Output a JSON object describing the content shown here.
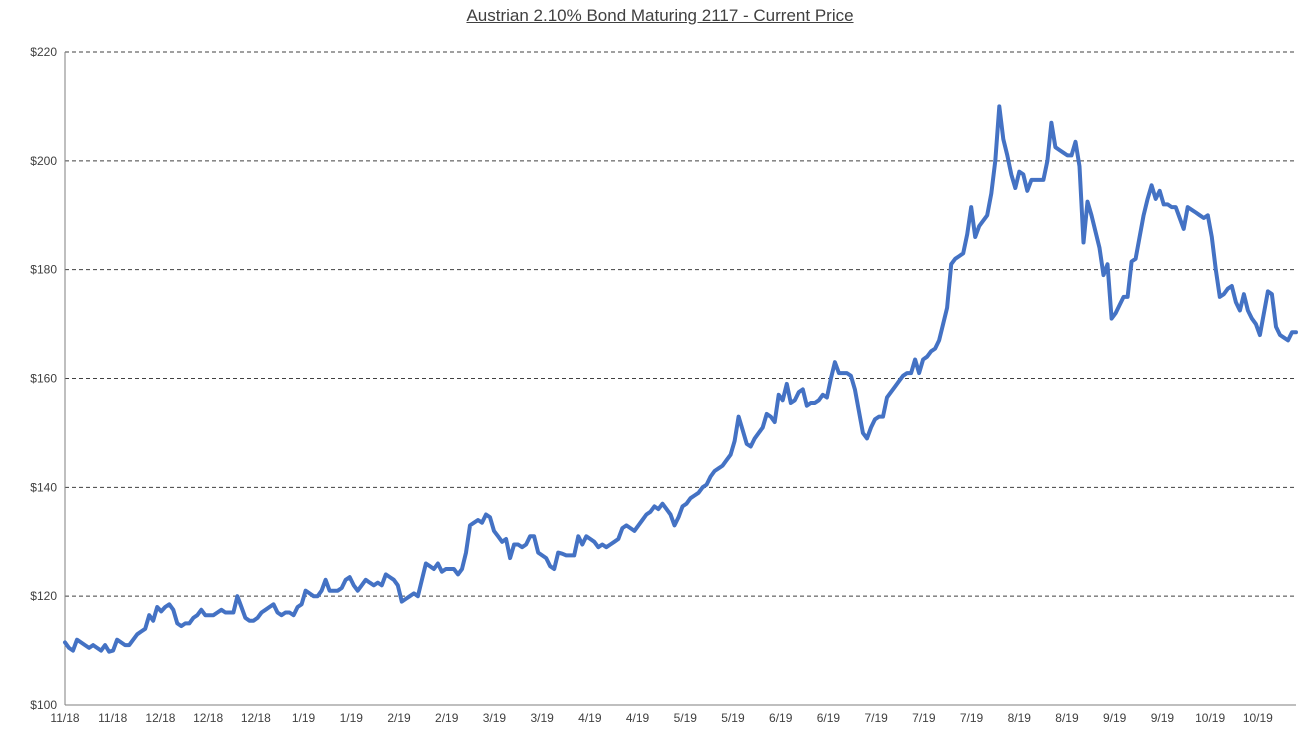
{
  "chart_data": {
    "type": "line",
    "title": "Austrian 2.10% Bond Maturing 2117 - Current Price",
    "xlabel": "",
    "ylabel": "",
    "ylim": [
      100,
      220
    ],
    "y_ticks": [
      100,
      120,
      140,
      160,
      180,
      200,
      220
    ],
    "y_tick_labels": [
      "$100",
      "$120",
      "$140",
      "$160",
      "$180",
      "$200",
      "$220"
    ],
    "x_tick_labels": [
      "11/18",
      "11/18",
      "12/18",
      "12/18",
      "12/18",
      "1/19",
      "1/19",
      "2/19",
      "2/19",
      "3/19",
      "3/19",
      "4/19",
      "4/19",
      "5/19",
      "5/19",
      "6/19",
      "6/19",
      "7/19",
      "7/19",
      "7/19",
      "8/19",
      "8/19",
      "9/19",
      "9/19",
      "10/19",
      "10/19"
    ],
    "grid": true,
    "legend": "none",
    "series_color": "#4472c4",
    "series": [
      {
        "values": [
          111.5,
          110.5,
          110.0,
          112.0,
          111.5,
          111.0,
          110.5,
          111.0,
          110.5,
          110.0,
          111.0,
          109.8,
          110.0,
          112.0,
          111.5,
          111.0,
          111.0,
          112.0,
          113.0,
          113.5,
          114.0,
          116.5,
          115.5,
          118.0,
          117.2,
          118.0,
          118.5,
          117.5,
          115.0,
          114.5,
          115.0,
          115.0,
          116.0,
          116.5,
          117.5,
          116.5,
          116.5,
          116.5,
          117.0,
          117.5,
          117.0,
          117.0,
          117.0,
          120.0,
          118.0,
          116.0,
          115.5,
          115.5,
          116.0,
          117.0,
          117.5,
          118.0,
          118.5,
          117.0,
          116.5,
          117.0,
          117.0,
          116.5,
          118.0,
          118.5,
          121.0,
          120.5,
          120.0,
          120.0,
          121.0,
          123.0,
          121.0,
          121.0,
          121.0,
          121.5,
          123.0,
          123.5,
          122.0,
          121.0,
          122.0,
          123.0,
          122.5,
          122.0,
          122.5,
          122.0,
          124.0,
          123.5,
          123.0,
          122.0,
          119.0,
          119.5,
          120.0,
          120.5,
          120.0,
          123.0,
          126.0,
          125.5,
          125.0,
          126.0,
          124.5,
          125.0,
          125.0,
          125.0,
          124.0,
          125.0,
          128.0,
          133.0,
          133.5,
          134.0,
          133.5,
          135.0,
          134.5,
          132.0,
          131.0,
          130.0,
          130.5,
          127.0,
          129.5,
          129.5,
          129.0,
          129.5,
          131.0,
          131.0,
          128.0,
          127.5,
          127.0,
          125.5,
          125.0,
          128.0,
          127.8,
          127.5,
          127.5,
          127.5,
          131.0,
          129.5,
          131.0,
          130.5,
          130.0,
          129.0,
          129.5,
          129.0,
          129.5,
          130.0,
          130.5,
          132.5,
          133.0,
          132.5,
          132.0,
          133.0,
          134.0,
          135.0,
          135.5,
          136.5,
          136.0,
          137.0,
          136.0,
          135.0,
          133.0,
          134.5,
          136.5,
          137.0,
          138.0,
          138.5,
          139.0,
          140.0,
          140.5,
          142.0,
          143.0,
          143.5,
          144.0,
          145.0,
          146.0,
          148.5,
          153.0,
          150.5,
          148.0,
          147.5,
          149.0,
          150.0,
          151.0,
          153.5,
          153.0,
          152.0,
          157.0,
          156.0,
          159.0,
          155.5,
          156.0,
          157.5,
          158.0,
          155.0,
          155.5,
          155.5,
          156.0,
          157.0,
          156.5,
          160.0,
          163.0,
          161.0,
          161.0,
          161.0,
          160.5,
          158.0,
          154.0,
          150.0,
          149.0,
          151.0,
          152.5,
          153.0,
          153.0,
          156.5,
          157.5,
          158.5,
          159.5,
          160.5,
          161.0,
          161.0,
          163.5,
          161.0,
          163.5,
          164.0,
          165.0,
          165.5,
          167.0,
          170.0,
          173.0,
          181.0,
          182.0,
          182.5,
          183.0,
          186.5,
          191.5,
          186.0,
          188.0,
          189.0,
          190.0,
          194.0,
          200.0,
          210.0,
          204.0,
          201.0,
          197.5,
          195.0,
          198.0,
          197.5,
          194.5,
          196.5,
          196.5,
          196.5,
          196.5,
          200.0,
          207.0,
          202.5,
          202.0,
          201.5,
          201.0,
          201.0,
          203.5,
          199.0,
          185.0,
          192.5,
          190.0,
          187.0,
          184.0,
          179.0,
          181.0,
          171.0,
          172.0,
          173.5,
          175.0,
          175.0,
          181.5,
          182.0,
          186.0,
          190.0,
          193.0,
          195.5,
          193.0,
          194.5,
          192.0,
          192.0,
          191.5,
          191.5,
          189.5,
          187.5,
          191.5,
          191.0,
          190.5,
          190.0,
          189.5,
          190.0,
          186.0,
          180.0,
          175.0,
          175.5,
          176.5,
          177.0,
          174.0,
          172.5,
          175.5,
          172.5,
          171.0,
          170.0,
          168.0,
          172.0,
          176.0,
          175.5,
          169.5,
          168.0,
          167.5,
          167.0,
          168.5,
          168.5
        ]
      }
    ]
  }
}
